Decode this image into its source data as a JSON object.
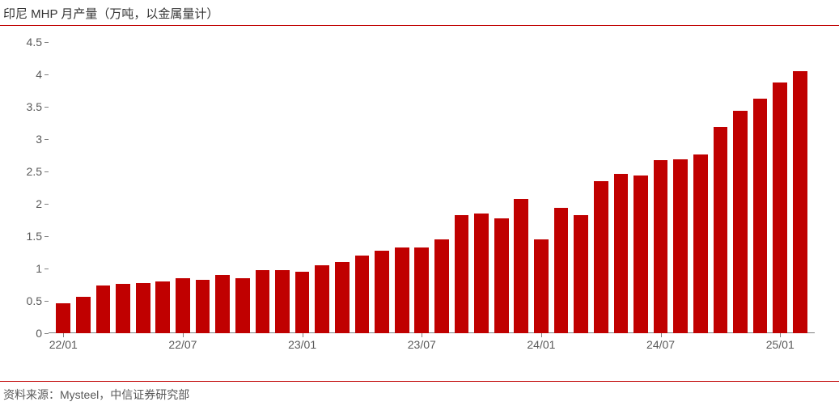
{
  "title": "印尼 MHP 月产量（万吨，以金属量计）",
  "source": "资料来源：Mysteel，中信证券研究部",
  "chart": {
    "type": "bar",
    "bar_color": "#c00000",
    "background_color": "#ffffff",
    "axis_color": "#808080",
    "tick_label_color": "#595959",
    "tick_fontsize": 14,
    "title_fontsize": 15,
    "ylim": [
      0,
      4.5
    ],
    "ytick_step": 0.5,
    "yticks": [
      0,
      0.5,
      1,
      1.5,
      2,
      2.5,
      3,
      3.5,
      4,
      4.5
    ],
    "bar_width_ratio": 0.72,
    "categories": [
      "22/01",
      "22/02",
      "22/03",
      "22/04",
      "22/05",
      "22/06",
      "22/07",
      "22/08",
      "22/09",
      "22/10",
      "22/11",
      "22/12",
      "23/01",
      "23/02",
      "23/03",
      "23/04",
      "23/05",
      "23/06",
      "23/07",
      "23/08",
      "23/09",
      "23/10",
      "23/11",
      "23/12",
      "24/01",
      "24/02",
      "24/03",
      "24/04",
      "24/05",
      "24/06",
      "24/07",
      "24/08",
      "24/09",
      "24/10",
      "24/11",
      "24/12",
      "25/01"
    ],
    "xtick_shown": [
      "22/01",
      "22/07",
      "23/01",
      "23/07",
      "24/01",
      "24/07",
      "25/01"
    ],
    "values": [
      0.46,
      0.56,
      0.74,
      0.76,
      0.78,
      0.8,
      0.85,
      0.83,
      0.9,
      0.85,
      0.97,
      0.97,
      0.95,
      1.05,
      1.1,
      1.2,
      1.28,
      1.32,
      1.32,
      1.45,
      1.82,
      1.85,
      1.78,
      2.08,
      1.45,
      1.94,
      1.83,
      2.35,
      2.46,
      2.44,
      2.68,
      2.69,
      2.76,
      3.19,
      3.44,
      3.63,
      3.87
    ],
    "last_value_extra": 4.05
  }
}
